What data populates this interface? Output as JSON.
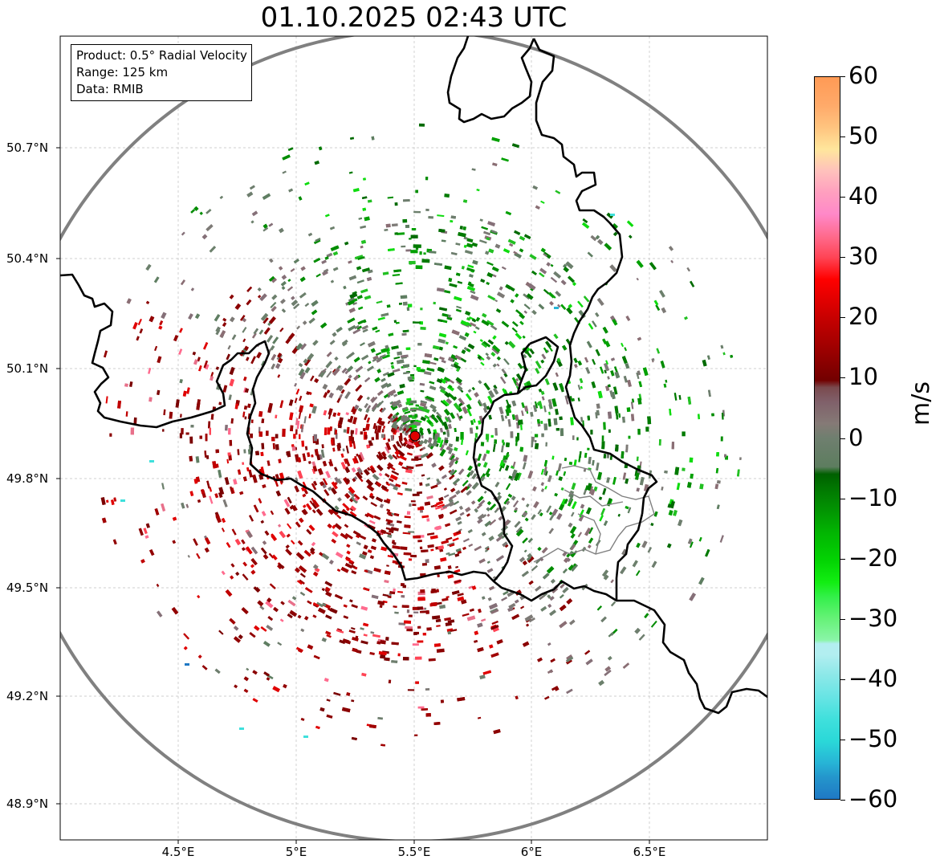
{
  "title": "01.10.2025 02:43 UTC",
  "info": {
    "product": "Product: 0.5° Radial Velocity",
    "range": "Range: 125 km",
    "data": "Data: RMIB"
  },
  "axes": {
    "lat_labels": [
      "50.7°N",
      "50.4°N",
      "50.1°N",
      "49.8°N",
      "49.5°N",
      "49.2°N",
      "48.9°N"
    ],
    "lon_labels": [
      "4.5°E",
      "5°E",
      "5.5°E",
      "6°E",
      "6.5°E"
    ]
  },
  "colorbar": {
    "unit": "m/s",
    "labels": [
      "60",
      "50",
      "40",
      "30",
      "20",
      "10",
      "0",
      "−10",
      "−20",
      "−30",
      "−40",
      "−50",
      "−60"
    ]
  },
  "colors": {
    "ring": "#808080",
    "border": "#000000",
    "radar_site": "#e00000",
    "approaching_green": "#009a00",
    "receding_red": "#8b0000",
    "near_zero": "#7d7a76"
  }
}
